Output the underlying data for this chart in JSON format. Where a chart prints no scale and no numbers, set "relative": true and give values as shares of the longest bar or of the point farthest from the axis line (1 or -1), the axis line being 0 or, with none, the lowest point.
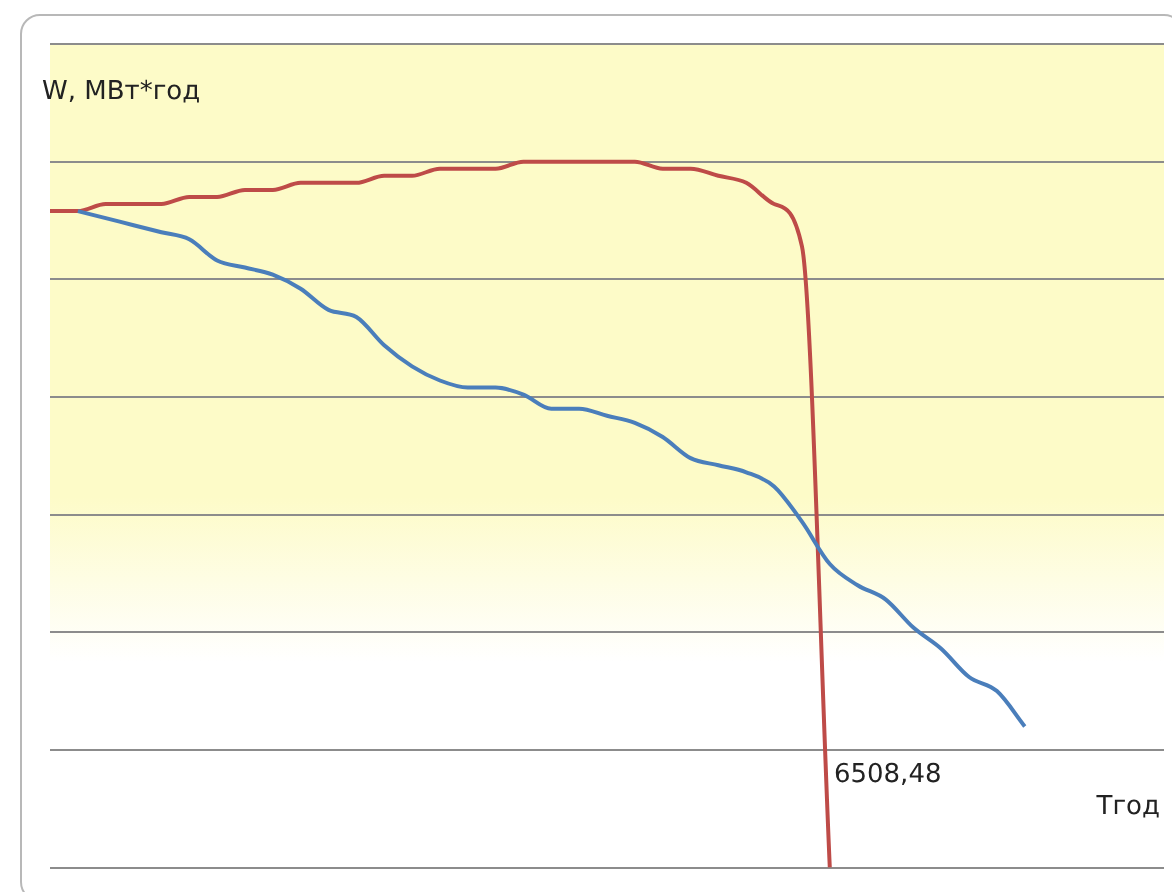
{
  "chart_data": {
    "type": "line",
    "relative": true,
    "ylabel": "W, МВт*год",
    "xlabel": "Тгод",
    "grid": "y",
    "legend": false,
    "marker": "none",
    "line_style": "solid",
    "annotations": [
      "6508,48"
    ],
    "categories": [
      null,
      null,
      null,
      null,
      null,
      null,
      null,
      null,
      null,
      null,
      null,
      null,
      null,
      null,
      null,
      null,
      null,
      null,
      null,
      null,
      null,
      null,
      null,
      null,
      null,
      null,
      null,
      null,
      null,
      null,
      null,
      null,
      null,
      null,
      null,
      null,
      null,
      null,
      null,
      null,
      null
    ],
    "series": [
      {
        "color": "#4a7ebb",
        "values": [
          null,
          0.93,
          0.92,
          0.91,
          0.9,
          0.89,
          0.86,
          0.85,
          0.84,
          0.82,
          0.79,
          0.78,
          0.74,
          0.71,
          0.69,
          0.68,
          0.68,
          0.67,
          0.65,
          0.65,
          0.64,
          0.63,
          0.61,
          0.58,
          0.57,
          0.56,
          0.54,
          0.49,
          0.43,
          0.4,
          0.38,
          0.34,
          0.31,
          0.27,
          0.25,
          0.2,
          null,
          null,
          null,
          null,
          null
        ]
      },
      {
        "color": "#be4b48",
        "values": [
          0.93,
          0.93,
          0.94,
          0.94,
          0.94,
          0.95,
          0.95,
          0.96,
          0.96,
          0.97,
          0.97,
          0.97,
          0.98,
          0.98,
          0.99,
          0.99,
          0.99,
          1,
          1,
          1,
          1,
          1,
          0.99,
          0.99,
          0.98,
          0.97,
          0.94,
          0.88,
          0,
          null,
          null,
          null,
          null,
          null,
          null,
          null,
          null,
          null,
          null,
          null,
          null
        ]
      }
    ]
  }
}
